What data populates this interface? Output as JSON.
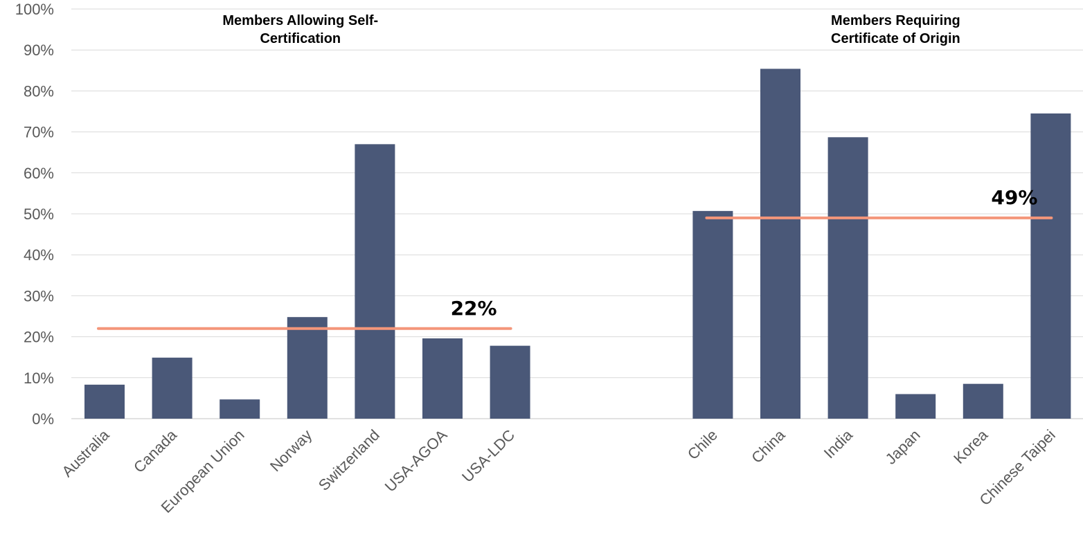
{
  "chart_data": {
    "type": "bar",
    "ylim": [
      0,
      100
    ],
    "y_ticks": [
      "0%",
      "10%",
      "20%",
      "30%",
      "40%",
      "50%",
      "60%",
      "70%",
      "80%",
      "90%",
      "100%"
    ],
    "grid": true,
    "colors": {
      "bar": "#4a5878",
      "average_line": "#f4967a",
      "grid": "#d9d9d9"
    },
    "groups": [
      {
        "title_lines": [
          "Members Allowing Self-",
          "Certification"
        ],
        "categories": [
          "Australia",
          "Canada",
          "European Union",
          "Norway",
          "Switzerland",
          "USA-AGOA",
          "USA-LDC"
        ],
        "values": [
          8.3,
          14.9,
          4.7,
          24.8,
          67.0,
          19.6,
          17.8
        ],
        "average": 22,
        "average_label": "22%"
      },
      {
        "title_lines": [
          "Members Requiring",
          "Certificate of Origin"
        ],
        "categories": [
          "Chile",
          "China",
          "India",
          "Japan",
          "Korea",
          "Chinese Taipei"
        ],
        "values": [
          50.7,
          85.4,
          68.7,
          6.0,
          8.5,
          74.5
        ],
        "average": 49,
        "average_label": "49%"
      }
    ]
  }
}
